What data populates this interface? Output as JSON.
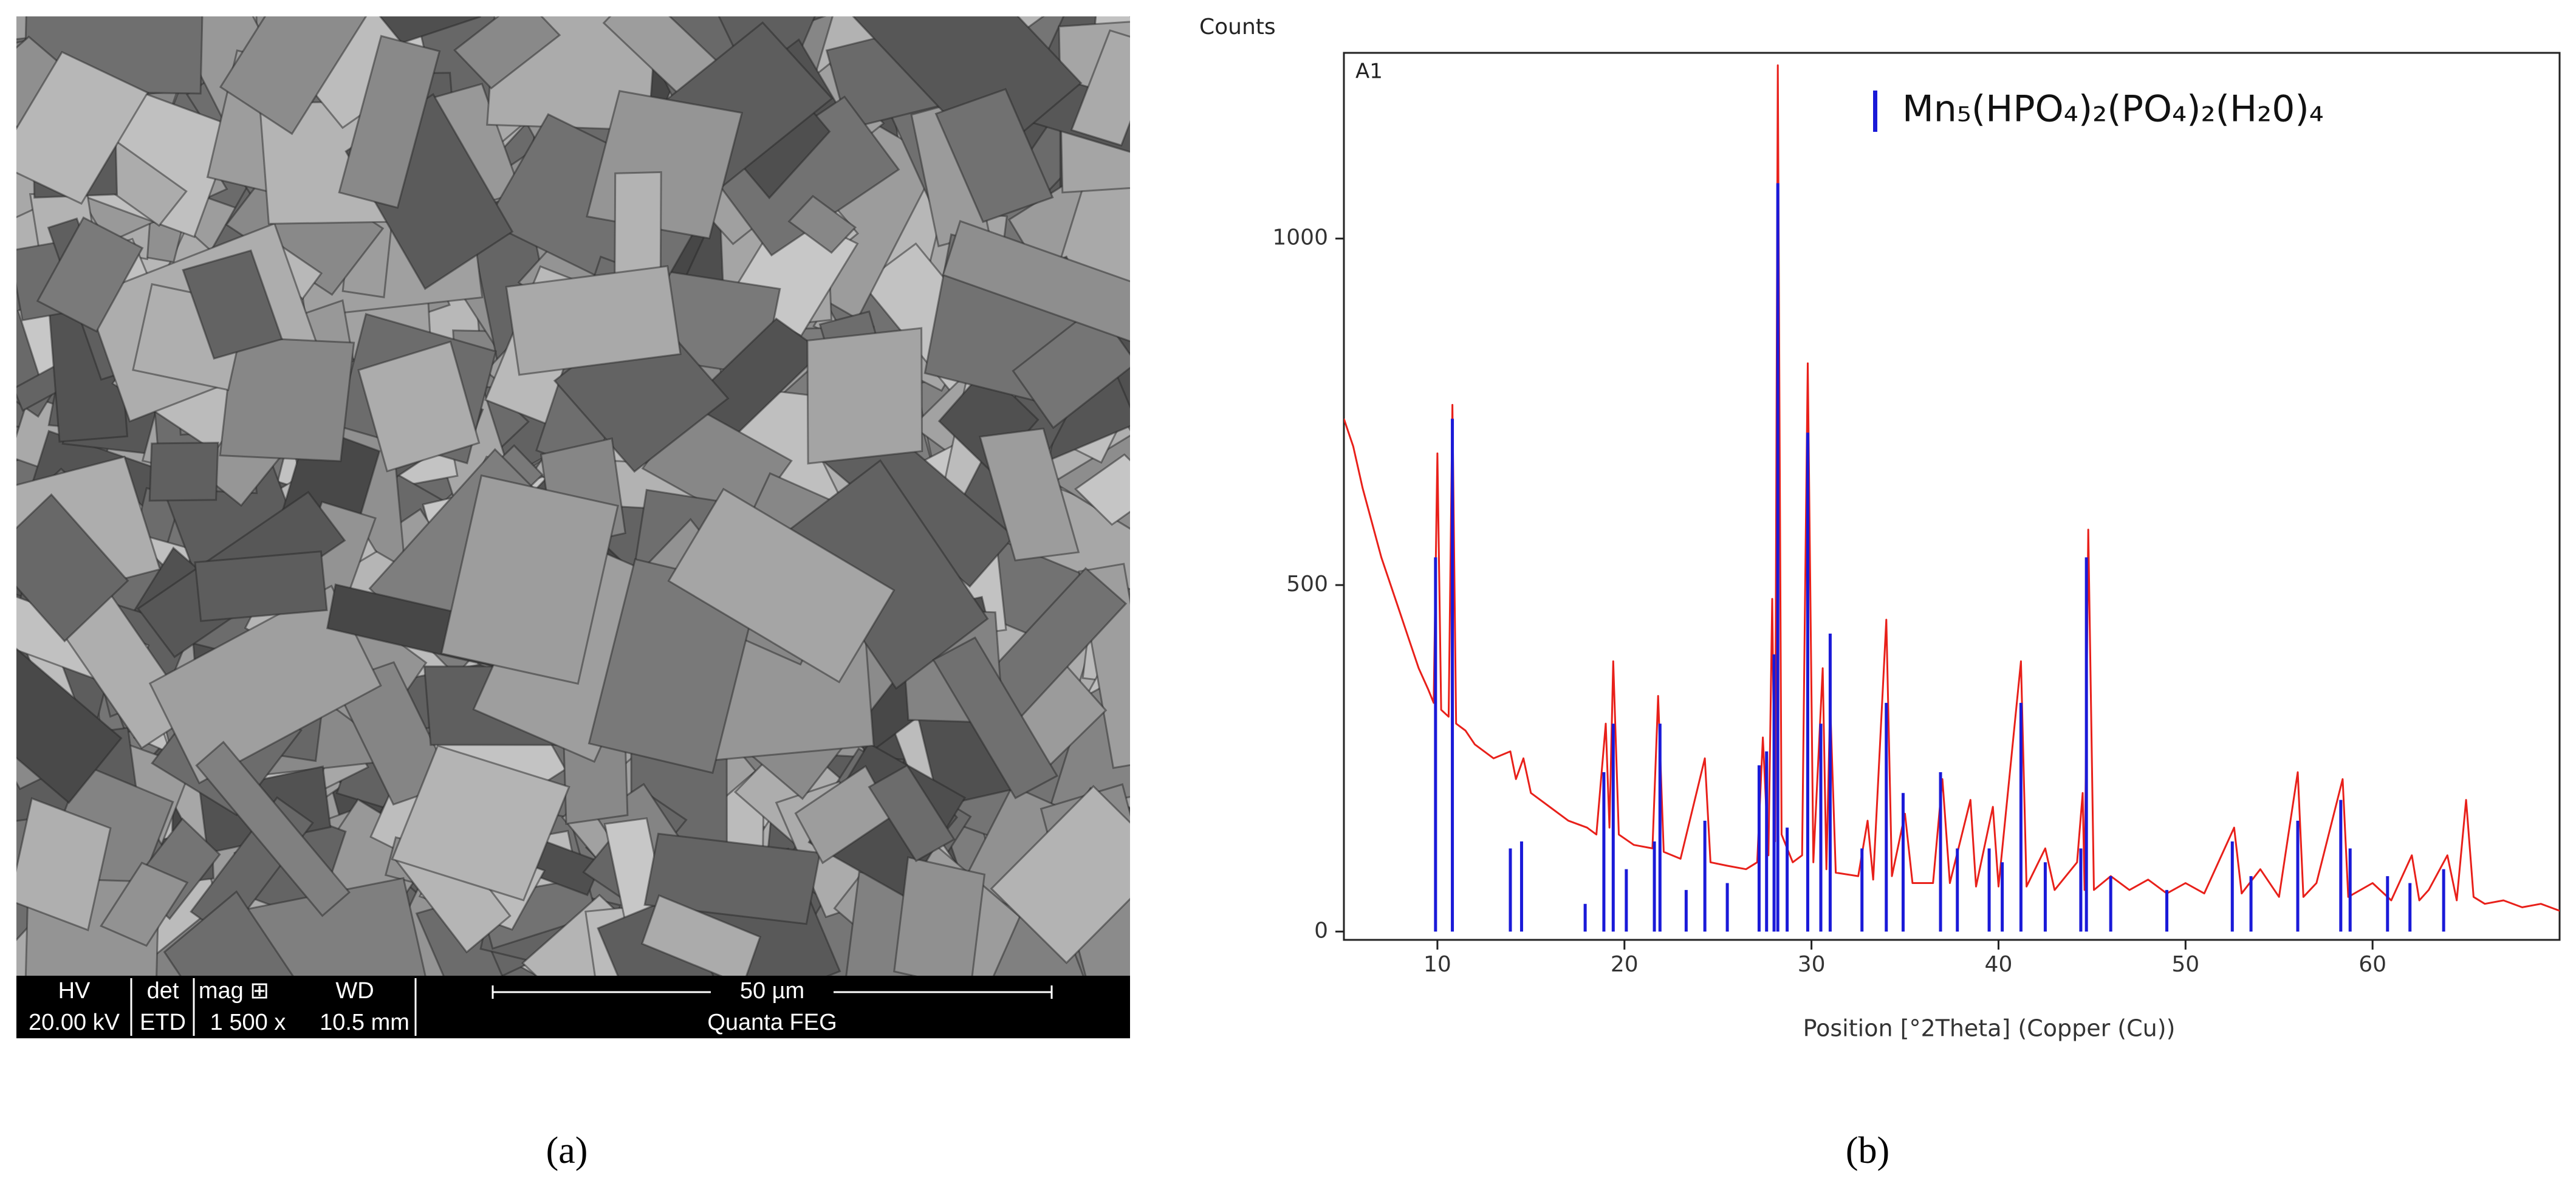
{
  "sem_image": {
    "info_bar": {
      "headers": [
        "HV",
        "det",
        "mag ⊞",
        "WD"
      ],
      "values": [
        "20.00 kV",
        "ETD",
        "1 500 x",
        "10.5 mm"
      ],
      "scale_bar": "50 µm",
      "instrument": "Quanta FEG"
    },
    "caption": "(a)"
  },
  "chart_data": {
    "type": "line",
    "panel_label": "A1",
    "y_label": "Counts",
    "x_label": "Position [°2Theta] (Copper (Cu))",
    "caption": "(b)",
    "xlim": [
      5,
      70
    ],
    "ylim": [
      -12,
      1268
    ],
    "xticks": [
      10,
      20,
      30,
      40,
      50,
      60
    ],
    "yticks": [
      0,
      500,
      1000
    ],
    "legend": "top-right",
    "series": [
      {
        "kind": "line",
        "color": "#e8201a",
        "x": [
          5,
          5.5,
          6,
          6.5,
          7,
          7.5,
          8,
          8.5,
          9,
          9.5,
          9.8,
          10.0,
          10.2,
          10.6,
          10.8,
          11.0,
          11.5,
          12,
          13,
          13.9,
          14.2,
          14.6,
          15,
          16,
          17,
          18,
          18.5,
          19.0,
          19.2,
          19.4,
          19.7,
          20.5,
          21.5,
          21.8,
          22.1,
          23,
          24.3,
          24.6,
          25.5,
          26.5,
          27.1,
          27.4,
          27.7,
          27.9,
          28.05,
          28.2,
          28.4,
          29,
          29.5,
          29.8,
          30.1,
          30.6,
          30.8,
          31.0,
          31.3,
          32.5,
          33.0,
          33.3,
          34.0,
          34.3,
          35,
          35.4,
          36.5,
          37.0,
          37.4,
          38.5,
          38.8,
          39.7,
          40.0,
          41.2,
          41.5,
          42.5,
          43,
          44.2,
          44.5,
          44.6,
          44.8,
          45.1,
          46,
          47,
          48,
          49,
          50,
          51,
          52.6,
          53,
          54,
          55,
          56.0,
          56.3,
          57,
          58.4,
          58.7,
          60,
          61,
          62.1,
          62.5,
          63,
          64,
          64.5,
          65.0,
          65.4,
          66,
          67,
          68,
          69,
          70
        ],
        "values": [
          740,
          700,
          640,
          590,
          540,
          500,
          460,
          420,
          380,
          350,
          330,
          690,
          320,
          310,
          760,
          300,
          290,
          270,
          250,
          260,
          220,
          250,
          200,
          180,
          160,
          150,
          140,
          300,
          150,
          390,
          140,
          125,
          120,
          340,
          115,
          105,
          250,
          100,
          95,
          90,
          100,
          280,
          110,
          480,
          130,
          1250,
          140,
          100,
          110,
          820,
          100,
          380,
          90,
          330,
          85,
          80,
          160,
          75,
          450,
          80,
          170,
          70,
          70,
          220,
          70,
          190,
          65,
          180,
          65,
          390,
          65,
          120,
          60,
          100,
          200,
          60,
          580,
          60,
          80,
          60,
          75,
          55,
          70,
          55,
          150,
          55,
          90,
          50,
          230,
          50,
          70,
          220,
          50,
          70,
          45,
          110,
          45,
          60,
          110,
          45,
          190,
          50,
          40,
          45,
          35,
          40,
          30
        ]
      },
      {
        "kind": "stick",
        "name": "Mn₅(HPO₄)₂(PO₄)₂(H₂0)₄",
        "color": "#1a1ad8",
        "x": [
          9.9,
          10.8,
          13.9,
          14.5,
          17.9,
          18.9,
          19.4,
          20.1,
          21.6,
          21.9,
          23.3,
          24.3,
          25.5,
          27.2,
          27.6,
          28.0,
          28.2,
          28.7,
          29.8,
          30.5,
          31.0,
          32.7,
          34.0,
          34.9,
          36.9,
          37.8,
          39.5,
          40.2,
          41.2,
          42.5,
          44.4,
          44.7,
          46.0,
          49.0,
          52.5,
          53.5,
          56.0,
          58.3,
          58.8,
          60.8,
          62.0,
          63.8
        ],
        "values": [
          540,
          740,
          120,
          130,
          40,
          230,
          300,
          90,
          130,
          300,
          60,
          160,
          70,
          240,
          260,
          400,
          1080,
          150,
          720,
          300,
          430,
          120,
          330,
          200,
          230,
          120,
          120,
          100,
          330,
          100,
          120,
          540,
          80,
          60,
          130,
          80,
          160,
          190,
          120,
          80,
          70,
          90
        ]
      }
    ]
  }
}
